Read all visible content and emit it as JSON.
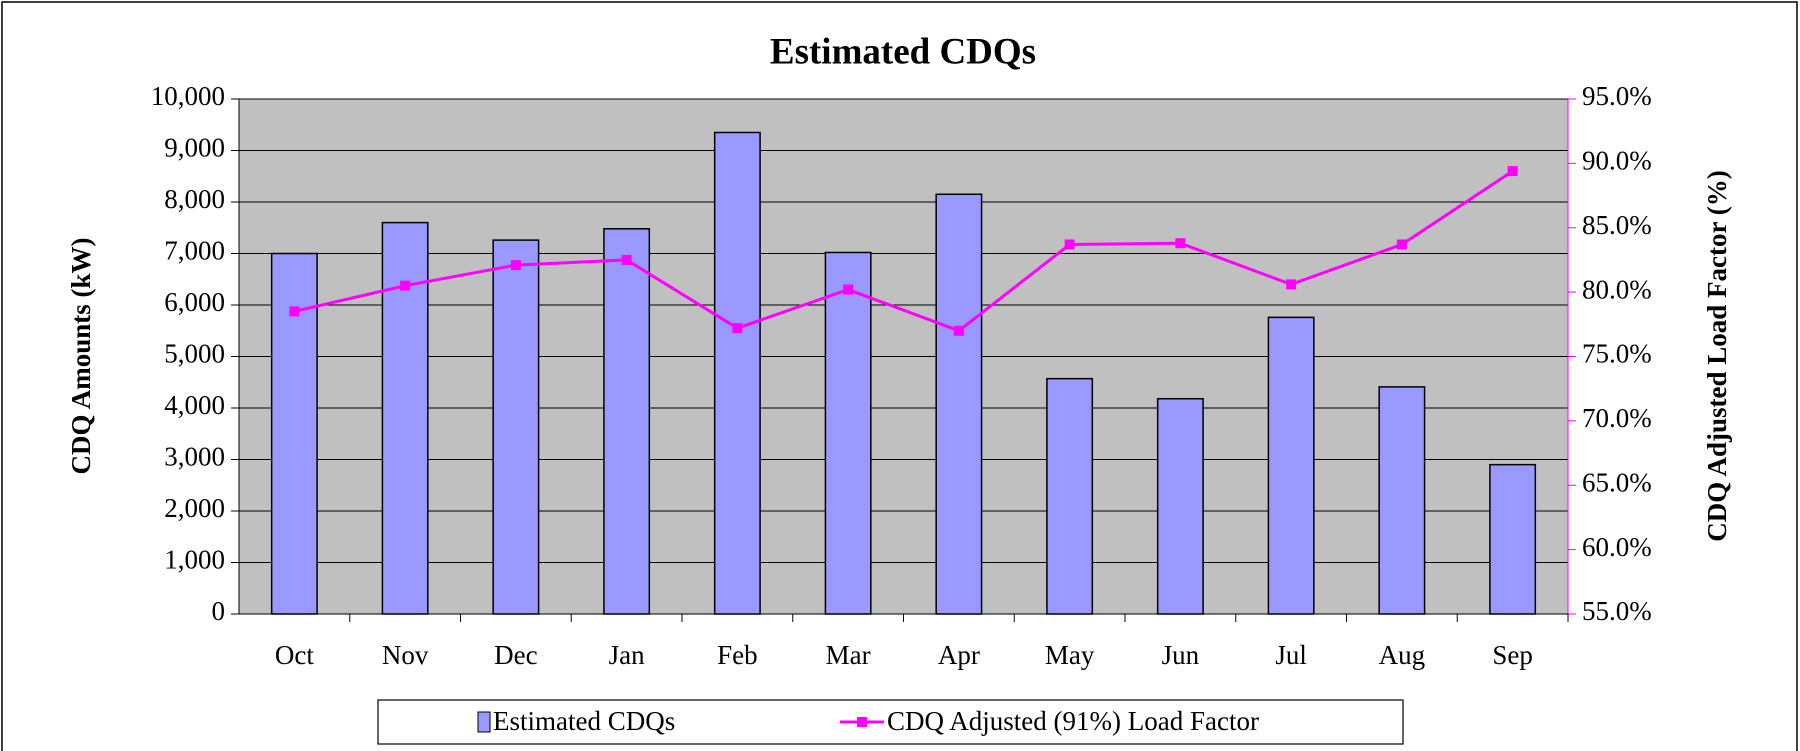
{
  "chart_data": {
    "type": "bar-line",
    "title": "Estimated CDQs",
    "y_label": "CDQ Amounts (kW)",
    "y2_label": "CDQ Adjusted Load Factor (%)",
    "categories": [
      "Oct",
      "Nov",
      "Dec",
      "Jan",
      "Feb",
      "Mar",
      "Apr",
      "May",
      "Jun",
      "Jul",
      "Aug",
      "Sep"
    ],
    "series": [
      {
        "name": "Estimated CDQs",
        "type": "bar",
        "color": "#9999ff",
        "values": [
          7000,
          7600,
          7260,
          7480,
          9350,
          7020,
          8150,
          4570,
          4180,
          5760,
          4410,
          2900
        ]
      },
      {
        "name": "CDQ Adjusted (91%) Load Factor",
        "type": "line",
        "axis": "y2",
        "color": "#ff00ff",
        "values": [
          78.5,
          80.5,
          82.1,
          82.5,
          77.2,
          80.2,
          77.0,
          83.7,
          83.8,
          80.6,
          83.7,
          89.4
        ]
      }
    ],
    "ylim": [
      0,
      10000
    ],
    "yticks": [
      0,
      {
        "value": 1000,
        "label": "1,000"
      },
      {
        "value": 2000,
        "label": "2,000"
      },
      {
        "value": 3000,
        "label": "3,000"
      },
      {
        "value": 4000,
        "label": "4,000"
      },
      {
        "value": 5000,
        "label": "5,000"
      },
      {
        "value": 6000,
        "label": "6,000"
      },
      {
        "value": 7000,
        "label": "7,000"
      },
      {
        "value": 8000,
        "label": "8,000"
      },
      {
        "value": 9000,
        "label": "9,000"
      },
      {
        "value": 10000,
        "label": "10,000"
      }
    ],
    "y2lim": [
      55,
      95
    ],
    "y2ticks": [
      {
        "value": 55,
        "label": "55.0%"
      },
      {
        "value": 60,
        "label": "60.0%"
      },
      {
        "value": 65,
        "label": "65.0%"
      },
      {
        "value": 70,
        "label": "70.0%"
      },
      {
        "value": 75,
        "label": "75.0%"
      },
      {
        "value": 80,
        "label": "80.0%"
      },
      {
        "value": 85,
        "label": "85.0%"
      },
      {
        "value": 90,
        "label": "90.0%"
      },
      {
        "value": 95,
        "label": "95.0%"
      }
    ],
    "grid": true,
    "plot_background": "#c0c0c0",
    "legend": "bottom"
  }
}
